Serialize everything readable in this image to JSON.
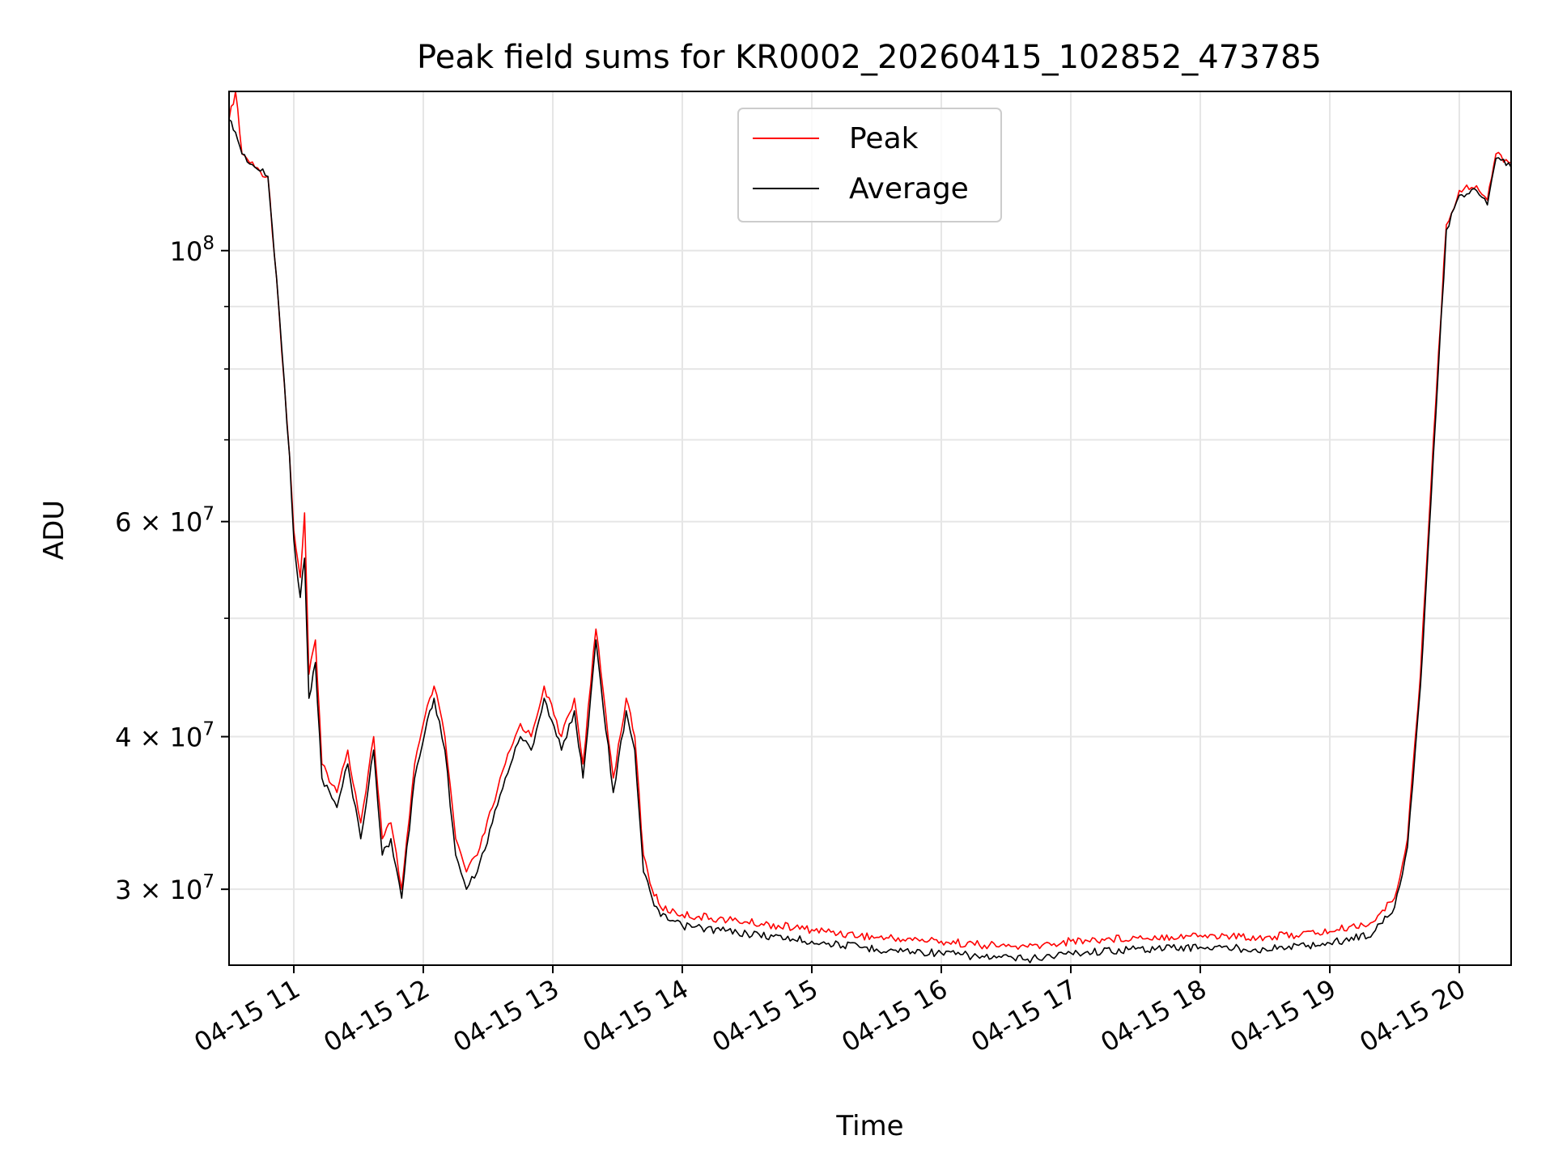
{
  "chart_data": {
    "type": "line",
    "title": "Peak field sums for KR0002_20260415_102852_473785",
    "xlabel": "Time",
    "ylabel": "ADU",
    "x_scale": "time",
    "y_scale": "log",
    "xlim": [
      "2026-04-15T10:30:00",
      "2026-04-15T20:24:00"
    ],
    "ylim": [
      26000000,
      135000000
    ],
    "grid": true,
    "legend_position": "top-center",
    "x_ticks": [
      "04-15 11",
      "04-15 12",
      "04-15 13",
      "04-15 14",
      "04-15 15",
      "04-15 16",
      "04-15 17",
      "04-15 18",
      "04-15 19",
      "04-15 20"
    ],
    "x_tick_times": [
      "2026-04-15T11:00:00",
      "2026-04-15T12:00:00",
      "2026-04-15T13:00:00",
      "2026-04-15T14:00:00",
      "2026-04-15T15:00:00",
      "2026-04-15T16:00:00",
      "2026-04-15T17:00:00",
      "2026-04-15T18:00:00",
      "2026-04-15T19:00:00",
      "2026-04-15T20:00:00"
    ],
    "y_ticks": [
      {
        "value": 100000000,
        "mant": "10",
        "exp": "8"
      },
      {
        "value": 60000000,
        "mant": "6 × 10",
        "exp": "7"
      },
      {
        "value": 40000000,
        "mant": "4 × 10",
        "exp": "7"
      },
      {
        "value": 30000000,
        "mant": "3 × 10",
        "exp": "7"
      }
    ],
    "y_minor_ticks": [
      90000000,
      80000000,
      70000000,
      50000000
    ],
    "series": [
      {
        "name": "Peak",
        "color": "#ff0000",
        "x": [
          "2026-04-15T10:30:00",
          "2026-04-15T10:33:00",
          "2026-04-15T10:36:00",
          "2026-04-15T10:42:00",
          "2026-04-15T10:48:00",
          "2026-04-15T10:52:00",
          "2026-04-15T10:58:00",
          "2026-04-15T11:00:00",
          "2026-04-15T11:03:00",
          "2026-04-15T11:05:00",
          "2026-04-15T11:07:00",
          "2026-04-15T11:10:00",
          "2026-04-15T11:13:00",
          "2026-04-15T11:20:00",
          "2026-04-15T11:25:00",
          "2026-04-15T11:31:00",
          "2026-04-15T11:37:00",
          "2026-04-15T11:41:00",
          "2026-04-15T11:45:00",
          "2026-04-15T11:50:00",
          "2026-04-15T11:56:00",
          "2026-04-15T12:03:00",
          "2026-04-15T12:05:00",
          "2026-04-15T12:10:00",
          "2026-04-15T12:15:00",
          "2026-04-15T12:20:00",
          "2026-04-15T12:25:00",
          "2026-04-15T12:32:00",
          "2026-04-15T12:38:00",
          "2026-04-15T12:45:00",
          "2026-04-15T12:50:00",
          "2026-04-15T12:56:00",
          "2026-04-15T13:04:00",
          "2026-04-15T13:10:00",
          "2026-04-15T13:14:00",
          "2026-04-15T13:20:00",
          "2026-04-15T13:28:00",
          "2026-04-15T13:34:00",
          "2026-04-15T13:38:00",
          "2026-04-15T13:42:00",
          "2026-04-15T13:46:00",
          "2026-04-15T13:50:00",
          "2026-04-15T14:00:00",
          "2026-04-15T14:30:00",
          "2026-04-15T15:00:00",
          "2026-04-15T15:30:00",
          "2026-04-15T16:00:00",
          "2026-04-15T16:20:00",
          "2026-04-15T16:40:00",
          "2026-04-15T17:00:00",
          "2026-04-15T17:30:00",
          "2026-04-15T18:00:00",
          "2026-04-15T18:30:00",
          "2026-04-15T19:00:00",
          "2026-04-15T19:20:00",
          "2026-04-15T19:30:00",
          "2026-04-15T19:36:00",
          "2026-04-15T19:42:00",
          "2026-04-15T19:48:00",
          "2026-04-15T19:54:00",
          "2026-04-15T20:00:00",
          "2026-04-15T20:08:00",
          "2026-04-15T20:13:00",
          "2026-04-15T20:17:00",
          "2026-04-15T20:24:00"
        ],
        "values": [
          128000000,
          135000000,
          120000000,
          117000000,
          115000000,
          95000000,
          68000000,
          59000000,
          54000000,
          61000000,
          45000000,
          48000000,
          38000000,
          36000000,
          39000000,
          34000000,
          40000000,
          33000000,
          34000000,
          30000000,
          38000000,
          43000000,
          44000000,
          40000000,
          33000000,
          31000000,
          32000000,
          35000000,
          38000000,
          41000000,
          40000000,
          44000000,
          40000000,
          43000000,
          38000000,
          49000000,
          37000000,
          43000000,
          40000000,
          32000000,
          30000000,
          29000000,
          28600000,
          28200000,
          27800000,
          27400000,
          27200000,
          27000000,
          26900000,
          27200000,
          27400000,
          27500000,
          27400000,
          27700000,
          28200000,
          29500000,
          33000000,
          45000000,
          70000000,
          105000000,
          112000000,
          113000000,
          110000000,
          120000000,
          118000000
        ]
      },
      {
        "name": "Average",
        "color": "#000000",
        "x": [
          "2026-04-15T10:30:00",
          "2026-04-15T10:33:00",
          "2026-04-15T10:36:00",
          "2026-04-15T10:42:00",
          "2026-04-15T10:48:00",
          "2026-04-15T10:52:00",
          "2026-04-15T10:58:00",
          "2026-04-15T11:00:00",
          "2026-04-15T11:03:00",
          "2026-04-15T11:05:00",
          "2026-04-15T11:07:00",
          "2026-04-15T11:10:00",
          "2026-04-15T11:13:00",
          "2026-04-15T11:20:00",
          "2026-04-15T11:25:00",
          "2026-04-15T11:31:00",
          "2026-04-15T11:37:00",
          "2026-04-15T11:41:00",
          "2026-04-15T11:45:00",
          "2026-04-15T11:50:00",
          "2026-04-15T11:56:00",
          "2026-04-15T12:03:00",
          "2026-04-15T12:05:00",
          "2026-04-15T12:10:00",
          "2026-04-15T12:15:00",
          "2026-04-15T12:20:00",
          "2026-04-15T12:25:00",
          "2026-04-15T12:32:00",
          "2026-04-15T12:38:00",
          "2026-04-15T12:45:00",
          "2026-04-15T12:50:00",
          "2026-04-15T12:56:00",
          "2026-04-15T13:04:00",
          "2026-04-15T13:10:00",
          "2026-04-15T13:14:00",
          "2026-04-15T13:20:00",
          "2026-04-15T13:28:00",
          "2026-04-15T13:34:00",
          "2026-04-15T13:38:00",
          "2026-04-15T13:42:00",
          "2026-04-15T13:46:00",
          "2026-04-15T13:50:00",
          "2026-04-15T14:00:00",
          "2026-04-15T14:30:00",
          "2026-04-15T15:00:00",
          "2026-04-15T15:30:00",
          "2026-04-15T16:00:00",
          "2026-04-15T16:20:00",
          "2026-04-15T16:40:00",
          "2026-04-15T17:00:00",
          "2026-04-15T17:30:00",
          "2026-04-15T18:00:00",
          "2026-04-15T18:30:00",
          "2026-04-15T19:00:00",
          "2026-04-15T19:20:00",
          "2026-04-15T19:30:00",
          "2026-04-15T19:36:00",
          "2026-04-15T19:42:00",
          "2026-04-15T19:48:00",
          "2026-04-15T19:54:00",
          "2026-04-15T20:00:00",
          "2026-04-15T20:08:00",
          "2026-04-15T20:13:00",
          "2026-04-15T20:17:00",
          "2026-04-15T20:24:00"
        ],
        "values": [
          128000000,
          125000000,
          120000000,
          117000000,
          115000000,
          95000000,
          68000000,
          58000000,
          52000000,
          56000000,
          43000000,
          46000000,
          37000000,
          35000000,
          38000000,
          33000000,
          39000000,
          32000000,
          33000000,
          29500000,
          37000000,
          42000000,
          43000000,
          39000000,
          32000000,
          30000000,
          31000000,
          34000000,
          37000000,
          40000000,
          39000000,
          43000000,
          39000000,
          42000000,
          37000000,
          48000000,
          36000000,
          42000000,
          39000000,
          31000000,
          29500000,
          28500000,
          28000000,
          27600000,
          27200000,
          26800000,
          26600000,
          26400000,
          26300000,
          26600000,
          26800000,
          26900000,
          26800000,
          27100000,
          27600000,
          29000000,
          32500000,
          44000000,
          68000000,
          104000000,
          111000000,
          112000000,
          109000000,
          119000000,
          117000000
        ]
      }
    ]
  }
}
